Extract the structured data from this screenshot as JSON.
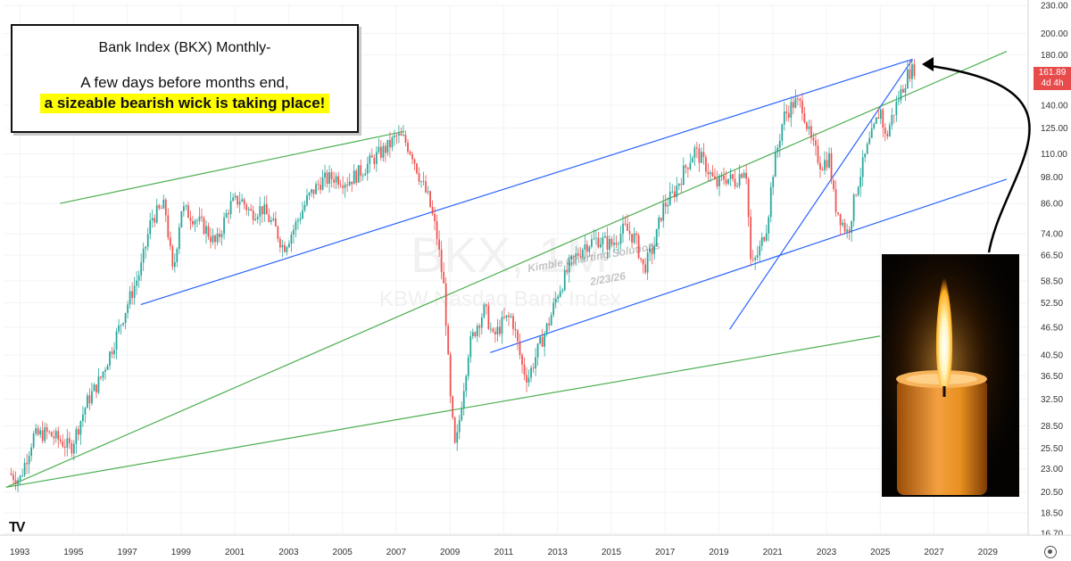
{
  "annotation": {
    "title": "Bank Index (BKX) Monthly-",
    "line1": "A few days before months end,",
    "line2": "a sizeable bearish wick is taking place!"
  },
  "watermark": {
    "symbol": "BKX, 1M",
    "name": "KBW Nasdaq Bank Index"
  },
  "stamp": {
    "author": "Kimble Charting Solutions",
    "date": "2/23/26"
  },
  "price_label": {
    "value": "161.89",
    "countdown": "4d 4h"
  },
  "logo": "TV",
  "colors": {
    "up": "#26a69a",
    "down": "#ef5350",
    "channel_green": "#4caf50",
    "channel_blue": "#2962ff",
    "price_label": "#e84b4b"
  },
  "chart_data": {
    "type": "candlestick",
    "interval": "monthly",
    "scale": "log",
    "x_ticks": [
      "1993",
      "1995",
      "1997",
      "1999",
      "2001",
      "2003",
      "2005",
      "2007",
      "2009",
      "2011",
      "2013",
      "2015",
      "2017",
      "2019",
      "2021",
      "2023",
      "2025",
      "2027",
      "2029"
    ],
    "y_ticks": [
      "230.00",
      "200.00",
      "180.00",
      "161.89",
      "140.00",
      "125.00",
      "110.00",
      "98.00",
      "86.00",
      "74.00",
      "66.50",
      "58.50",
      "52.50",
      "46.50",
      "40.50",
      "36.50",
      "32.50",
      "28.50",
      "25.50",
      "23.00",
      "20.50",
      "18.50",
      "16.70"
    ],
    "ylim": [
      16.7,
      230
    ],
    "xlim": [
      1992.4,
      2030.5
    ],
    "price_path": [
      [
        1992.6,
        22.5
      ],
      [
        1993.0,
        21.8
      ],
      [
        1993.5,
        27.0
      ],
      [
        1994.0,
        27.5
      ],
      [
        1994.5,
        26.5
      ],
      [
        1994.9,
        25.5
      ],
      [
        1995.5,
        32
      ],
      [
        1996.0,
        36
      ],
      [
        1996.5,
        43
      ],
      [
        1997.0,
        52
      ],
      [
        1997.5,
        62
      ],
      [
        1997.9,
        80
      ],
      [
        1998.4,
        85
      ],
      [
        1998.7,
        60
      ],
      [
        1999.0,
        84
      ],
      [
        1999.5,
        80
      ],
      [
        1999.9,
        76
      ],
      [
        2000.3,
        70
      ],
      [
        2000.8,
        85
      ],
      [
        2001.2,
        88
      ],
      [
        2001.6,
        82
      ],
      [
        2002.0,
        84
      ],
      [
        2002.5,
        76
      ],
      [
        2002.8,
        69
      ],
      [
        2003.2,
        76
      ],
      [
        2003.7,
        88
      ],
      [
        2004.2,
        96
      ],
      [
        2004.7,
        98
      ],
      [
        2005.2,
        96
      ],
      [
        2005.7,
        101
      ],
      [
        2006.2,
        108
      ],
      [
        2006.7,
        114
      ],
      [
        2007.0,
        120
      ],
      [
        2007.3,
        118
      ],
      [
        2007.6,
        110
      ],
      [
        2007.9,
        97
      ],
      [
        2008.2,
        88
      ],
      [
        2008.5,
        74
      ],
      [
        2008.8,
        55
      ],
      [
        2009.0,
        33
      ],
      [
        2009.2,
        25
      ],
      [
        2009.4,
        31
      ],
      [
        2009.7,
        42
      ],
      [
        2010.0,
        47
      ],
      [
        2010.3,
        51
      ],
      [
        2010.6,
        44
      ],
      [
        2011.0,
        48
      ],
      [
        2011.3,
        49
      ],
      [
        2011.7,
        38
      ],
      [
        2011.9,
        36
      ],
      [
        2012.3,
        42
      ],
      [
        2012.7,
        48
      ],
      [
        2013.0,
        55
      ],
      [
        2013.5,
        64
      ],
      [
        2014.0,
        70
      ],
      [
        2014.5,
        72
      ],
      [
        2015.0,
        70
      ],
      [
        2015.5,
        76
      ],
      [
        2015.9,
        72
      ],
      [
        2016.2,
        62
      ],
      [
        2016.6,
        70
      ],
      [
        2016.9,
        84
      ],
      [
        2017.3,
        90
      ],
      [
        2017.8,
        104
      ],
      [
        2018.1,
        112
      ],
      [
        2018.5,
        104
      ],
      [
        2018.9,
        94
      ],
      [
        2019.2,
        98
      ],
      [
        2019.6,
        96
      ],
      [
        2020.0,
        104
      ],
      [
        2020.2,
        62
      ],
      [
        2020.5,
        68
      ],
      [
        2020.8,
        78
      ],
      [
        2021.0,
        100
      ],
      [
        2021.4,
        132
      ],
      [
        2021.8,
        142
      ],
      [
        2022.1,
        140
      ],
      [
        2022.4,
        118
      ],
      [
        2022.8,
        104
      ],
      [
        2023.1,
        108
      ],
      [
        2023.3,
        86
      ],
      [
        2023.6,
        78
      ],
      [
        2023.8,
        74
      ],
      [
        2024.1,
        92
      ],
      [
        2024.5,
        112
      ],
      [
        2024.8,
        126
      ],
      [
        2025.0,
        138
      ],
      [
        2025.2,
        118
      ],
      [
        2025.4,
        130
      ],
      [
        2025.7,
        146
      ],
      [
        2026.0,
        162
      ],
      [
        2026.15,
        168
      ],
      [
        2026.25,
        161.89
      ]
    ],
    "trendlines": [
      {
        "color": "green",
        "points": [
          [
            1992.5,
            21.0
          ],
          [
            2029.7,
            183
          ]
        ]
      },
      {
        "color": "green",
        "points": [
          [
            1992.5,
            21.0
          ],
          [
            2025.0,
            44.5
          ]
        ]
      },
      {
        "color": "green",
        "points": [
          [
            1994.5,
            86
          ],
          [
            2007.3,
            123
          ]
        ]
      },
      {
        "color": "blue",
        "points": [
          [
            1997.5,
            52
          ],
          [
            2026.2,
            176
          ]
        ]
      },
      {
        "color": "blue",
        "points": [
          [
            2010.5,
            41
          ],
          [
            2029.7,
            97
          ]
        ]
      },
      {
        "color": "blue",
        "points": [
          [
            2019.4,
            46
          ],
          [
            2026.2,
            176
          ]
        ]
      }
    ],
    "arrow_tip": [
      2026.5,
      172
    ]
  }
}
